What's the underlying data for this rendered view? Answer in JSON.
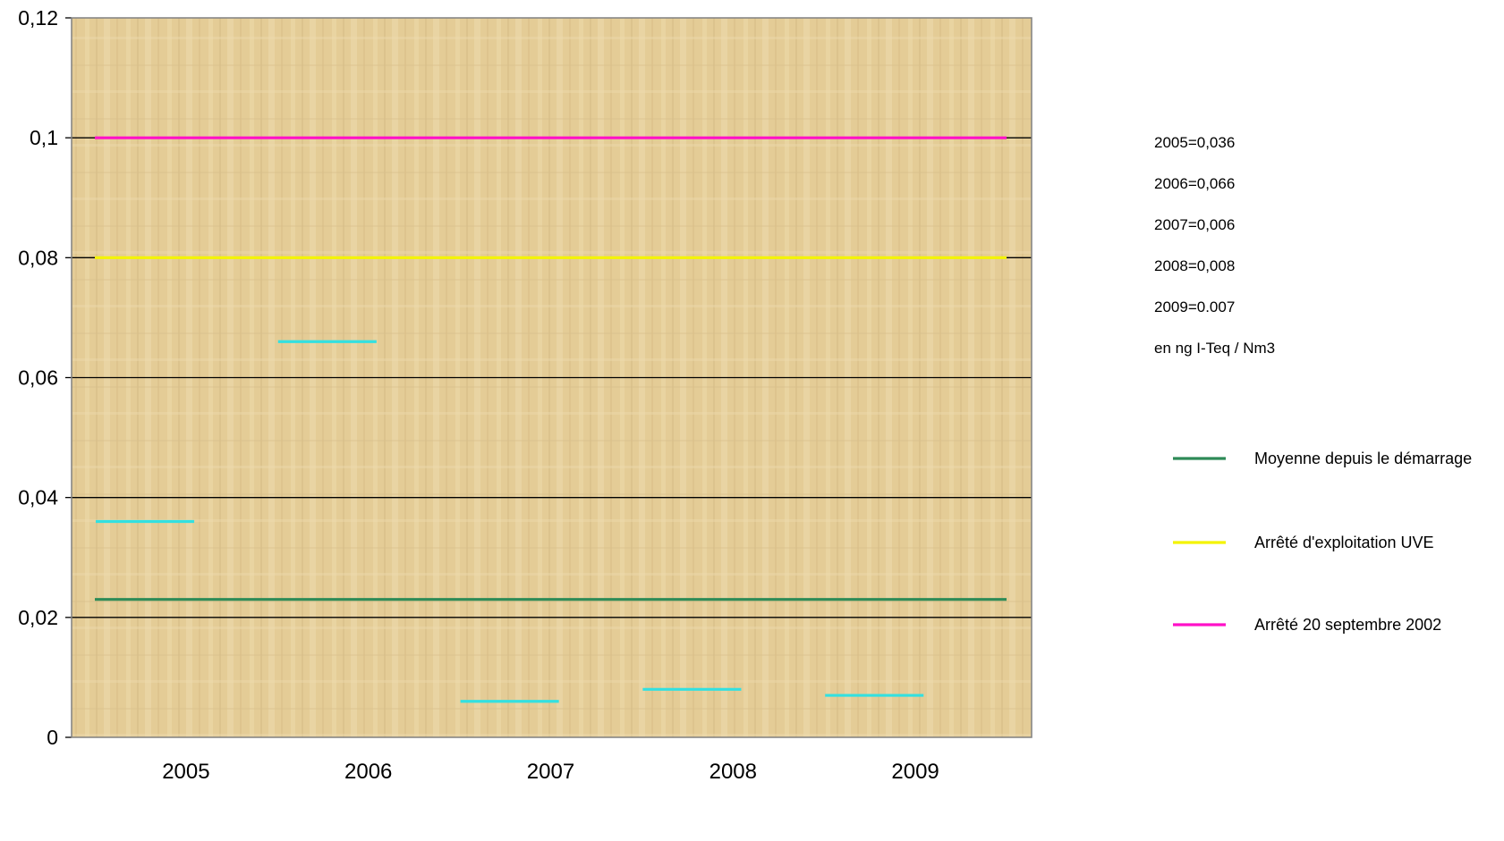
{
  "chart_data": {
    "type": "line",
    "title": "",
    "xlabel": "",
    "ylabel": "",
    "categories": [
      "2005",
      "2006",
      "2007",
      "2008",
      "2009"
    ],
    "ylim": [
      0,
      0.12
    ],
    "y_ticks": [
      0,
      0.02,
      0.04,
      0.06,
      0.08,
      0.1,
      0.12
    ],
    "y_tick_labels": [
      "0",
      "0,02",
      "0,04",
      "0,06",
      "0,08",
      "0,1",
      "0,12"
    ],
    "grid": true,
    "background": "parchment texture",
    "annual_values": {
      "color": "#33e0e0",
      "values": [
        0.036,
        0.066,
        0.006,
        0.008,
        0.007
      ]
    },
    "reference_lines": [
      {
        "name": "Moyenne depuis le démarrage",
        "value": 0.023,
        "color": "#2e8b57"
      },
      {
        "name": "Arrêté d'exploitation UVE",
        "value": 0.08,
        "color": "#f4f400"
      },
      {
        "name": "Arrêté 20 septembre 2002",
        "value": 0.1,
        "color": "#ff10c8"
      }
    ],
    "legend_position": "right",
    "notes": [
      "2005=0,036",
      "2006=0,066",
      "2007=0,006",
      "2008=0,008",
      "2009=0.007",
      "en ng I-Teq / Nm3"
    ]
  }
}
